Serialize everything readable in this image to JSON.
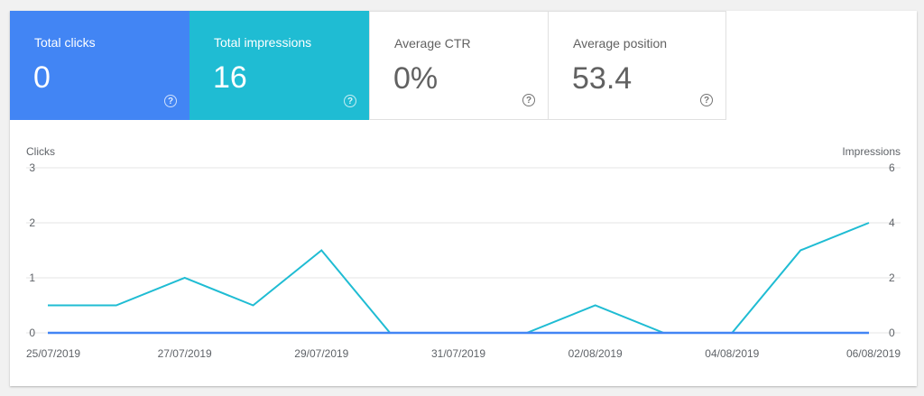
{
  "metrics": {
    "total_clicks": {
      "label": "Total clicks",
      "value": "0",
      "help": "?"
    },
    "total_impressions": {
      "label": "Total impressions",
      "value": "16",
      "help": "?"
    },
    "average_ctr": {
      "label": "Average CTR",
      "value": "0%",
      "help": "?"
    },
    "average_position": {
      "label": "Average position",
      "value": "53.4",
      "help": "?"
    }
  },
  "colors": {
    "clicks": "#4285f4",
    "impressions": "#1fbcd3",
    "grid": "#e6e6e6"
  },
  "chart_data": {
    "type": "line",
    "x": [
      "25/07/2019",
      "26/07/2019",
      "27/07/2019",
      "28/07/2019",
      "29/07/2019",
      "30/07/2019",
      "31/07/2019",
      "01/08/2019",
      "02/08/2019",
      "03/08/2019",
      "04/08/2019",
      "05/08/2019",
      "06/08/2019"
    ],
    "x_tick_labels": [
      "25/07/2019",
      "27/07/2019",
      "29/07/2019",
      "31/07/2019",
      "02/08/2019",
      "04/08/2019",
      "06/08/2019"
    ],
    "series": [
      {
        "name": "Clicks",
        "axis": "left",
        "color": "#4285f4",
        "values": [
          0,
          0,
          0,
          0,
          0,
          0,
          0,
          0,
          0,
          0,
          0,
          0,
          0
        ]
      },
      {
        "name": "Impressions",
        "axis": "right",
        "color": "#1fbcd3",
        "values": [
          1,
          1,
          2,
          1,
          3,
          0,
          0,
          0,
          1,
          0,
          0,
          3,
          4
        ]
      }
    ],
    "ylabel_left": "Clicks",
    "ylabel_right": "Impressions",
    "ylim_left": [
      0,
      3
    ],
    "ylim_right": [
      0,
      6
    ],
    "yticks_left": [
      0,
      1,
      2,
      3
    ],
    "yticks_right": [
      0,
      2,
      4,
      6
    ],
    "grid": true
  }
}
